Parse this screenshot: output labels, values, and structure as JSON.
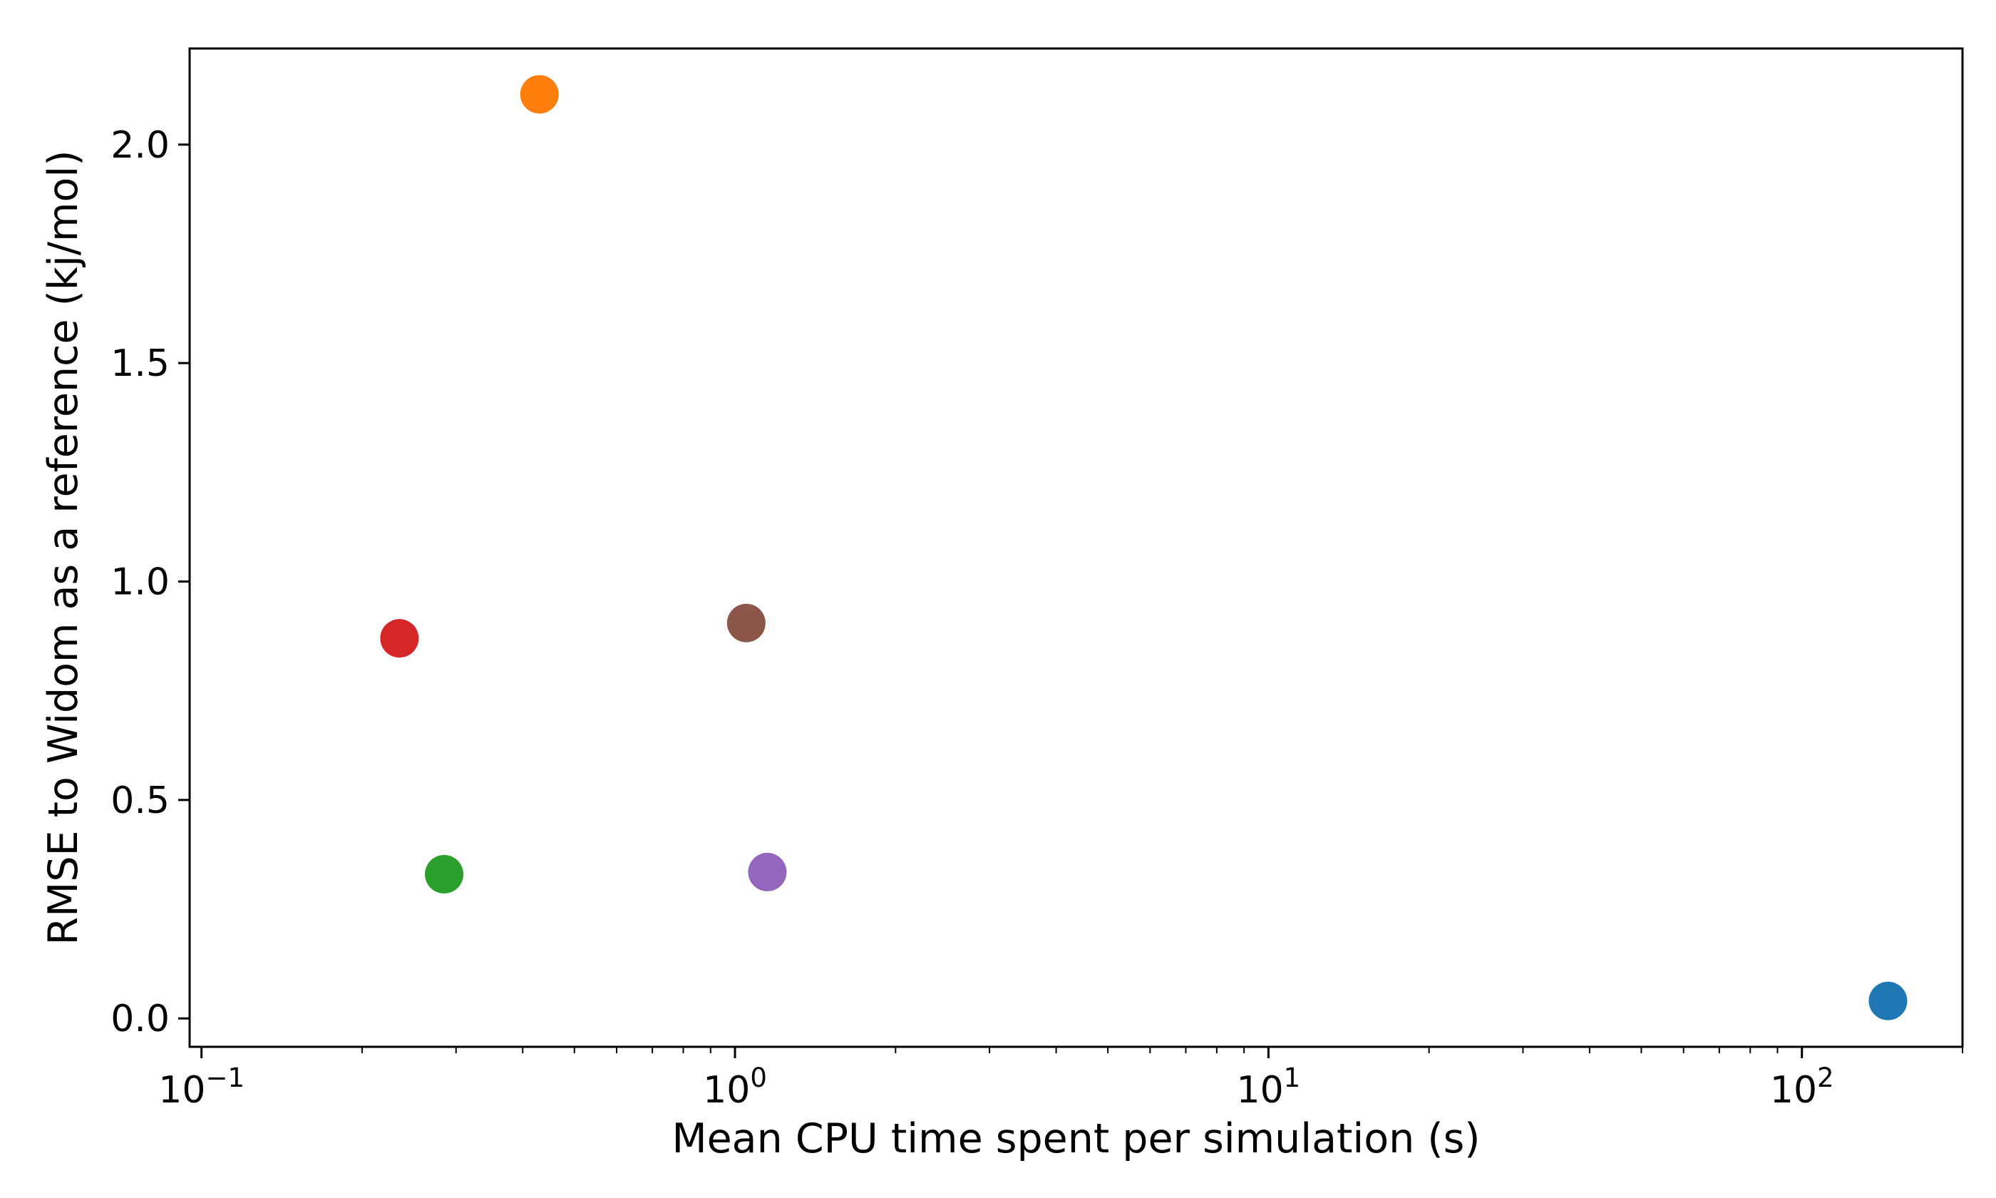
{
  "chart_data": {
    "type": "scatter",
    "title": "",
    "xlabel": "Mean CPU time spent per simulation (s)",
    "ylabel": "RMSE to Widom as a reference (kj/mol)",
    "x_scale": "log",
    "xlim": [
      0.095,
      200
    ],
    "ylim": [
      -0.065,
      2.22
    ],
    "grid": false,
    "legend": "none",
    "x_ticks": [
      {
        "value": 0.1,
        "base": "10",
        "exp": "−1"
      },
      {
        "value": 1,
        "base": "10",
        "exp": "0"
      },
      {
        "value": 10,
        "base": "10",
        "exp": "1"
      },
      {
        "value": 100,
        "base": "10",
        "exp": "2"
      }
    ],
    "y_ticks": [
      {
        "value": 0.0,
        "label": "0.0"
      },
      {
        "value": 0.5,
        "label": "0.5"
      },
      {
        "value": 1.0,
        "label": "1.0"
      },
      {
        "value": 1.5,
        "label": "1.5"
      },
      {
        "value": 2.0,
        "label": "2.0"
      }
    ],
    "points": [
      {
        "x": 145,
        "y": 0.04,
        "color": "#1f77b4"
      },
      {
        "x": 0.43,
        "y": 2.115,
        "color": "#ff7f0e"
      },
      {
        "x": 0.285,
        "y": 0.33,
        "color": "#2ca02c"
      },
      {
        "x": 0.235,
        "y": 0.87,
        "color": "#d62728"
      },
      {
        "x": 1.15,
        "y": 0.335,
        "color": "#9467bd"
      },
      {
        "x": 1.05,
        "y": 0.905,
        "color": "#8c564b"
      }
    ]
  }
}
